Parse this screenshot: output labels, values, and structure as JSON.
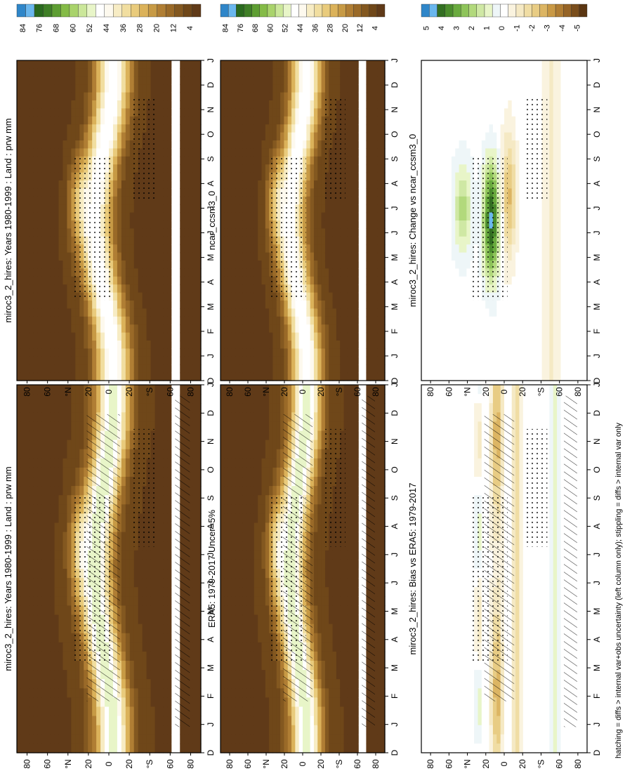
{
  "footnote": "hatching = diffs > internal var+obs uncertainty (left column only); stippling = diffs > internal var only",
  "colors": {
    "abs_scale": [
      "#603a18",
      "#6f4719",
      "#835820",
      "#9a6a28",
      "#b07e34",
      "#c79a45",
      "#dbb25a",
      "#e9cb7c",
      "#f1dea0",
      "#f7ecc4",
      "#fdf9ee",
      "#ffffff",
      "#e8f5c8",
      "#cbe79a",
      "#a9d36b",
      "#84bb47",
      "#5e9e33",
      "#3f7f27",
      "#2a6a1f",
      "#6ab7ee",
      "#2f86c9"
    ],
    "diff_scale": [
      "#5b3612",
      "#7a4e1c",
      "#966426",
      "#b07d33",
      "#c99945",
      "#dcb563",
      "#e8cc84",
      "#f0dda4",
      "#f5e9c4",
      "#faf3df",
      "#ffffff",
      "#eef6f8",
      "#e8f5c8",
      "#cfe8a4",
      "#b2d97c",
      "#8ec45a",
      "#6aab3f",
      "#4b8d2d",
      "#336f22",
      "#6ab7ee",
      "#2f86c9"
    ]
  },
  "chart_data": [
    {
      "type": "heatmap",
      "id": "model-abs",
      "title": "miroc3_2_hires: Years 1980-1999 : Land : prw mm",
      "x_ticks": [
        "D",
        "J",
        "F",
        "M",
        "A",
        "M",
        "J",
        "J",
        "A",
        "S",
        "O",
        "N",
        "D",
        "J"
      ],
      "y_ticks": [
        "80",
        "60",
        "°N",
        "20",
        "0",
        "20",
        "°S",
        "60",
        "80"
      ],
      "colorbar_labels": [
        "84",
        "76",
        "68",
        "60",
        "52",
        "44",
        "36",
        "28",
        "20",
        "12",
        "4"
      ],
      "overlay": "hatching+stippling"
    },
    {
      "type": "heatmap",
      "id": "model-abs-2",
      "title": "miroc3_2_hires: Years 1980-1999 : Land : prw mm",
      "x_ticks": [
        "D",
        "J",
        "F",
        "M",
        "A",
        "M",
        "J",
        "J",
        "A",
        "S",
        "O",
        "N",
        "D",
        "J"
      ],
      "y_ticks": [
        "80",
        "60",
        "°N",
        "20",
        "0",
        "20",
        "°S",
        "60",
        "80"
      ],
      "colorbar_labels": [
        "84",
        "76",
        "68",
        "60",
        "52",
        "44",
        "36",
        "28",
        "20",
        "12",
        "4"
      ],
      "overlay": "stippling"
    },
    {
      "type": "heatmap",
      "id": "obs",
      "title": "ERA5: 1979-2017 Uncer=5%",
      "x_ticks": [
        "D",
        "J",
        "F",
        "M",
        "A",
        "M",
        "J",
        "J",
        "A",
        "S",
        "O",
        "N",
        "D",
        "J"
      ],
      "y_ticks": [
        "80",
        "60",
        "°N",
        "20",
        "0",
        "20",
        "°S",
        "60",
        "80"
      ],
      "colorbar_labels": [
        "84",
        "76",
        "68",
        "60",
        "52",
        "44",
        "36",
        "28",
        "20",
        "12",
        "4"
      ],
      "overlay": "hatching+stippling"
    },
    {
      "type": "heatmap",
      "id": "ref-model",
      "title": "ncar_ccsm3_0",
      "x_ticks": [
        "D",
        "J",
        "F",
        "M",
        "A",
        "M",
        "J",
        "J",
        "A",
        "S",
        "O",
        "N",
        "D",
        "J"
      ],
      "y_ticks": [
        "80",
        "60",
        "°N",
        "20",
        "0",
        "20",
        "°S",
        "60",
        "80"
      ],
      "colorbar_labels": [
        "84",
        "76",
        "68",
        "60",
        "52",
        "44",
        "36",
        "28",
        "20",
        "12",
        "4"
      ],
      "overlay": "stippling"
    },
    {
      "type": "heatmap",
      "id": "bias",
      "title": "miroc3_2_hires: Bias vs ERA5: 1979-2017",
      "x_ticks": [
        "D",
        "J",
        "F",
        "M",
        "A",
        "M",
        "J",
        "J",
        "A",
        "S",
        "O",
        "N",
        "D",
        "J"
      ],
      "y_ticks": [
        "80",
        "60",
        "°N",
        "20",
        "0",
        "20",
        "°S",
        "60",
        "80"
      ],
      "colorbar_labels": [
        "5",
        "4",
        "3",
        "2",
        "1",
        "0",
        "-1",
        "-2",
        "-3",
        "-4",
        "-5"
      ],
      "overlay": "hatching+stippling"
    },
    {
      "type": "heatmap",
      "id": "change",
      "title": "miroc3_2_hires: Change vs ncar_ccsm3_0",
      "x_ticks": [
        "D",
        "J",
        "F",
        "M",
        "A",
        "M",
        "J",
        "J",
        "A",
        "S",
        "O",
        "N",
        "D",
        "J"
      ],
      "y_ticks": [
        "80",
        "60",
        "°N",
        "20",
        "0",
        "20",
        "°S",
        "60",
        "80"
      ],
      "colorbar_labels": [
        "5",
        "4",
        "3",
        "2",
        "1",
        "0",
        "-1",
        "-2",
        "-3",
        "-4",
        "-5"
      ],
      "overlay": "stippling"
    }
  ]
}
